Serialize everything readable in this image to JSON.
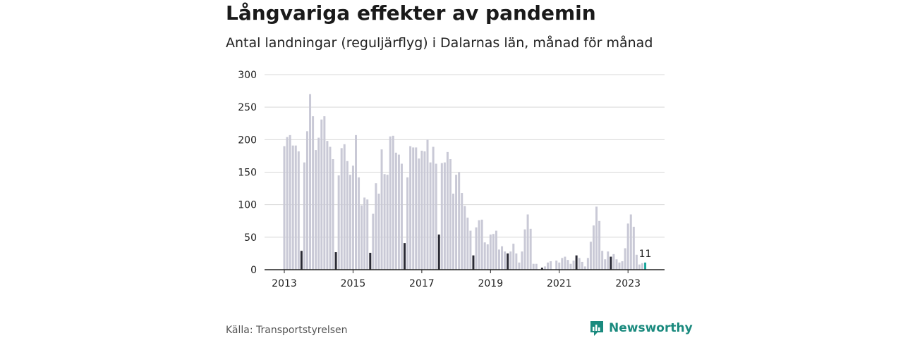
{
  "title": "Långvariga effekter av pandemin",
  "subtitle": "Antal landningar (reguljärflyg) i Dalarnas län, månad för månad",
  "source": "Källa: Transportstyrelsen",
  "brand": {
    "name": "Newsworthy",
    "icon": "newsworthy-logo-icon",
    "color": "#1a8a7e"
  },
  "colors": {
    "bar": "#c9c9d6",
    "highlight": "#2a2a35",
    "latest": "#1aa59a",
    "grid": "#d8d8d8",
    "axis": "#222222"
  },
  "chart_data": {
    "type": "bar",
    "title": "Långvariga effekter av pandemin",
    "subtitle": "Antal landningar (reguljärflyg) i Dalarnas län, månad för månad",
    "xlabel": "",
    "ylabel": "",
    "ylim": [
      0,
      300
    ],
    "yticks": [
      0,
      50,
      100,
      150,
      200,
      250,
      300
    ],
    "xticks": [
      "2013",
      "2015",
      "2017",
      "2019",
      "2021",
      "2023"
    ],
    "start": "2013-01",
    "highlight_month": "07",
    "grid": true,
    "latest_label": "11",
    "values": [
      190,
      204,
      207,
      191,
      191,
      182,
      29,
      165,
      213,
      270,
      236,
      184,
      203,
      231,
      236,
      198,
      189,
      170,
      27,
      145,
      187,
      193,
      167,
      146,
      160,
      207,
      142,
      99,
      111,
      108,
      26,
      86,
      133,
      117,
      185,
      147,
      146,
      205,
      206,
      180,
      177,
      163,
      41,
      142,
      190,
      188,
      188,
      171,
      183,
      182,
      200,
      165,
      189,
      163,
      54,
      164,
      165,
      181,
      170,
      117,
      146,
      150,
      118,
      98,
      80,
      60,
      22,
      65,
      76,
      77,
      42,
      39,
      54,
      55,
      60,
      31,
      36,
      28,
      25,
      28,
      40,
      25,
      11,
      28,
      62,
      85,
      63,
      9,
      9,
      0,
      3,
      5,
      11,
      13,
      0,
      14,
      11,
      18,
      20,
      15,
      9,
      14,
      22,
      18,
      12,
      5,
      18,
      43,
      68,
      97,
      75,
      29,
      16,
      28,
      20,
      24,
      16,
      11,
      13,
      33,
      71,
      85,
      66,
      23,
      8,
      10,
      11
    ]
  }
}
